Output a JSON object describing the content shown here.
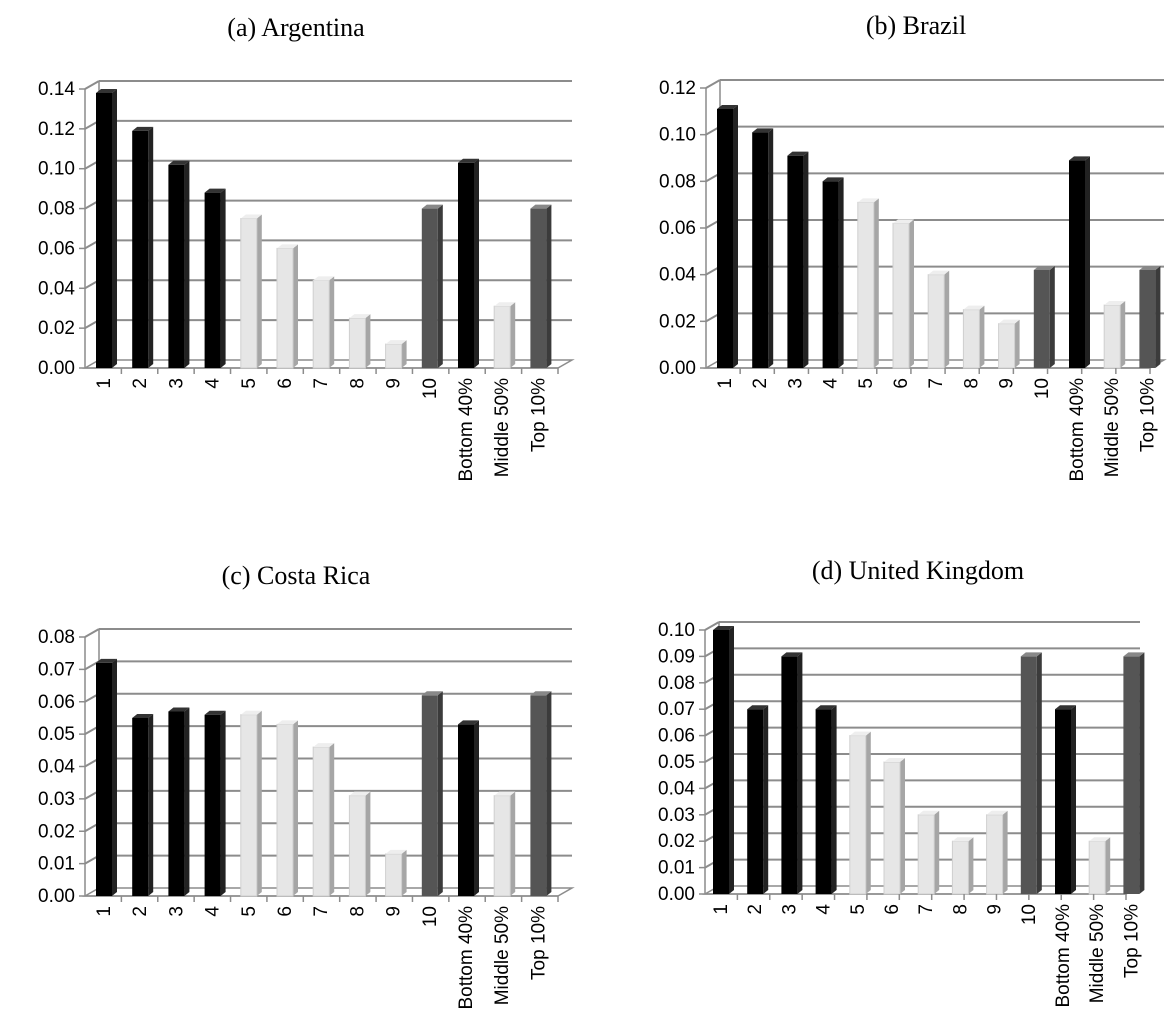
{
  "colors": {
    "bottom": "#000000",
    "middle": "#e6e6e6",
    "top": "#555555",
    "grid": "#8c8c8c"
  },
  "chart_data": [
    {
      "type": "bar",
      "title": "(a) Argentina",
      "categories": [
        "1",
        "2",
        "3",
        "4",
        "5",
        "6",
        "7",
        "8",
        "9",
        "10",
        "Bottom 40%",
        "Middle 50%",
        "Top 10%"
      ],
      "values": [
        0.138,
        0.119,
        0.102,
        0.088,
        0.075,
        0.06,
        0.044,
        0.025,
        0.012,
        0.08,
        0.103,
        0.031,
        0.08
      ],
      "groups": [
        "bottom",
        "bottom",
        "bottom",
        "bottom",
        "middle",
        "middle",
        "middle",
        "middle",
        "middle",
        "top",
        "bottom",
        "middle",
        "top"
      ],
      "ylim": [
        0,
        0.14
      ],
      "yticks": [
        "0.00",
        "0.02",
        "0.04",
        "0.06",
        "0.08",
        "0.10",
        "0.12",
        "0.14"
      ],
      "grid": true
    },
    {
      "type": "bar",
      "title": "(b) Brazil",
      "categories": [
        "1",
        "2",
        "3",
        "4",
        "5",
        "6",
        "7",
        "8",
        "9",
        "10",
        "Bottom 40%",
        "Middle 50%",
        "Top 10%"
      ],
      "values": [
        0.111,
        0.101,
        0.091,
        0.08,
        0.071,
        0.062,
        0.04,
        0.025,
        0.019,
        0.042,
        0.089,
        0.027,
        0.042
      ],
      "groups": [
        "bottom",
        "bottom",
        "bottom",
        "bottom",
        "middle",
        "middle",
        "middle",
        "middle",
        "middle",
        "top",
        "bottom",
        "middle",
        "top"
      ],
      "ylim": [
        0,
        0.12
      ],
      "yticks": [
        "0.00",
        "0.02",
        "0.04",
        "0.06",
        "0.08",
        "0.10",
        "0.12"
      ],
      "grid": true
    },
    {
      "type": "bar",
      "title": "(c) Costa Rica",
      "categories": [
        "1",
        "2",
        "3",
        "4",
        "5",
        "6",
        "7",
        "8",
        "9",
        "10",
        "Bottom 40%",
        "Middle 50%",
        "Top 10%"
      ],
      "values": [
        0.072,
        0.055,
        0.057,
        0.056,
        0.056,
        0.053,
        0.046,
        0.031,
        0.013,
        0.062,
        0.053,
        0.031,
        0.062
      ],
      "groups": [
        "bottom",
        "bottom",
        "bottom",
        "bottom",
        "middle",
        "middle",
        "middle",
        "middle",
        "middle",
        "top",
        "bottom",
        "middle",
        "top"
      ],
      "ylim": [
        0,
        0.08
      ],
      "yticks": [
        "0.00",
        "0.01",
        "0.02",
        "0.03",
        "0.04",
        "0.05",
        "0.06",
        "0.07",
        "0.08"
      ],
      "grid": true
    },
    {
      "type": "bar",
      "title": "(d) United Kingdom",
      "categories": [
        "1",
        "2",
        "3",
        "4",
        "5",
        "6",
        "7",
        "8",
        "9",
        "10",
        "Bottom 40%",
        "Middle 50%",
        "Top 10%"
      ],
      "values": [
        0.1,
        0.07,
        0.09,
        0.07,
        0.06,
        0.05,
        0.03,
        0.02,
        0.03,
        0.09,
        0.07,
        0.02,
        0.09
      ],
      "groups": [
        "bottom",
        "bottom",
        "bottom",
        "bottom",
        "middle",
        "middle",
        "middle",
        "middle",
        "middle",
        "top",
        "bottom",
        "middle",
        "top"
      ],
      "ylim": [
        0,
        0.1
      ],
      "yticks": [
        "0.00",
        "0.01",
        "0.02",
        "0.03",
        "0.04",
        "0.05",
        "0.06",
        "0.07",
        "0.08",
        "0.09",
        "0.10"
      ],
      "grid": true
    }
  ]
}
